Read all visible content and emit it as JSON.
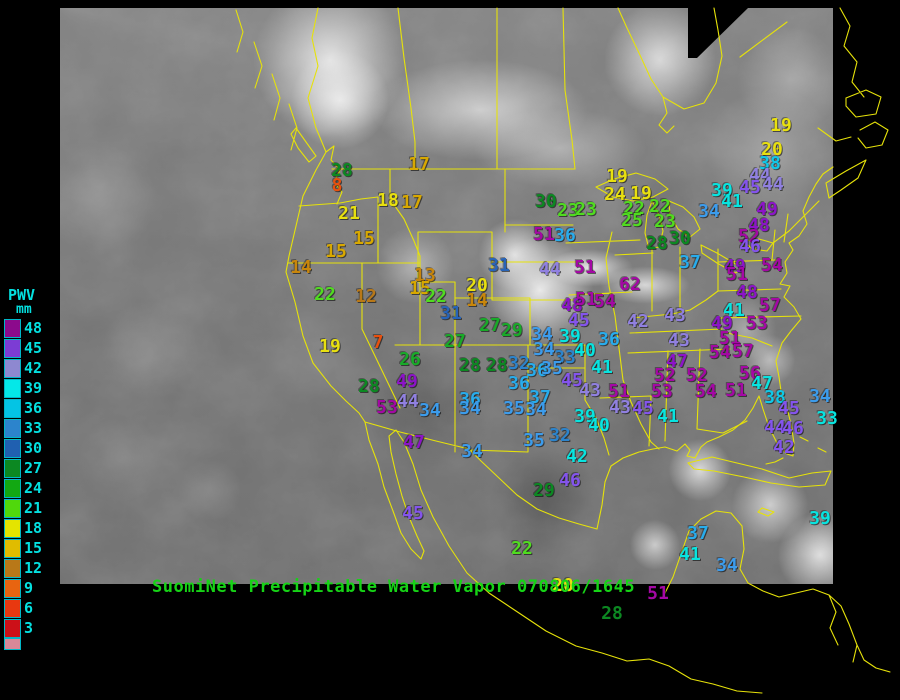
{
  "title": {
    "text": "SuomiNet Precipitable Water Vapor 070806/1645",
    "color": "#16d316"
  },
  "legend": {
    "title": "PWV",
    "unit": "mm",
    "label_color": "#04e0e0",
    "entries": [
      {
        "value": "48",
        "color": "#8c0a8c"
      },
      {
        "value": "45",
        "color": "#7c3cd4"
      },
      {
        "value": "42",
        "color": "#8e88d0"
      },
      {
        "value": "39",
        "color": "#04e8e8"
      },
      {
        "value": "36",
        "color": "#04c4e4"
      },
      {
        "value": "33",
        "color": "#2c84cc"
      },
      {
        "value": "30",
        "color": "#2060b0"
      },
      {
        "value": "27",
        "color": "#0c8822"
      },
      {
        "value": "24",
        "color": "#12a812"
      },
      {
        "value": "21",
        "color": "#50d80c"
      },
      {
        "value": "18",
        "color": "#e4e400"
      },
      {
        "value": "15",
        "color": "#e0bc00"
      },
      {
        "value": "12",
        "color": "#b87818"
      },
      {
        "value": "9",
        "color": "#e86410"
      },
      {
        "value": "6",
        "color": "#e83810"
      },
      {
        "value": "3",
        "color": "#cc1018"
      }
    ],
    "partial_bottom_color": "#d88898"
  },
  "map": {
    "outline_color": "#e6e20a",
    "background": "#000000"
  },
  "station_fields": [
    "value",
    "x",
    "y",
    "color"
  ],
  "stations": [
    [
      "28",
      342,
      171,
      "#0c8822"
    ],
    [
      "8",
      337,
      186,
      "#e8500e"
    ],
    [
      "17",
      419,
      165,
      "#d8a800"
    ],
    [
      "18",
      388,
      201,
      "#e8e010"
    ],
    [
      "17",
      412,
      203,
      "#d8a800"
    ],
    [
      "21",
      349,
      214,
      "#e8e010"
    ],
    [
      "15",
      364,
      239,
      "#d8a800"
    ],
    [
      "15",
      336,
      252,
      "#d8a800"
    ],
    [
      "14",
      301,
      268,
      "#c8860c"
    ],
    [
      "22",
      325,
      295,
      "#50dc20"
    ],
    [
      "12",
      366,
      297,
      "#b87818"
    ],
    [
      "13",
      425,
      276,
      "#c8860c"
    ],
    [
      "15",
      420,
      289,
      "#d8a800"
    ],
    [
      "22",
      436,
      297,
      "#50dc20"
    ],
    [
      "20",
      477,
      286,
      "#e8e010"
    ],
    [
      "14",
      477,
      301,
      "#c8860c"
    ],
    [
      "31",
      451,
      314,
      "#2864b8"
    ],
    [
      "19",
      330,
      347,
      "#e8e010"
    ],
    [
      "7",
      378,
      343,
      "#e8500e"
    ],
    [
      "26",
      410,
      360,
      "#18aa28"
    ],
    [
      "27",
      455,
      342,
      "#18aa28"
    ],
    [
      "49",
      407,
      382,
      "#8c14c8"
    ],
    [
      "28",
      369,
      387,
      "#0c8822"
    ],
    [
      "53",
      387,
      408,
      "#a408a4"
    ],
    [
      "44",
      408,
      402,
      "#9080e0"
    ],
    [
      "34",
      430,
      411,
      "#3c9cec"
    ],
    [
      "47",
      414,
      443,
      "#8c14c8"
    ],
    [
      "45",
      413,
      514,
      "#8454ec"
    ],
    [
      "34",
      472,
      452,
      "#3c9cec"
    ],
    [
      "27",
      490,
      326,
      "#18aa28"
    ],
    [
      "29",
      512,
      331,
      "#18aa28"
    ],
    [
      "31",
      499,
      266,
      "#2864b8"
    ],
    [
      "30",
      546,
      202,
      "#0c8822"
    ],
    [
      "23",
      568,
      211,
      "#50dc20"
    ],
    [
      "23",
      586,
      210,
      "#50dc20"
    ],
    [
      "51",
      544,
      235,
      "#a408a4"
    ],
    [
      "36",
      565,
      236,
      "#28acec"
    ],
    [
      "44",
      550,
      270,
      "#9080e0"
    ],
    [
      "51",
      585,
      268,
      "#a408a4"
    ],
    [
      "48",
      572,
      306,
      "#8c14c8"
    ],
    [
      "45",
      579,
      321,
      "#8454ec"
    ],
    [
      "51",
      586,
      300,
      "#a408a4"
    ],
    [
      "54",
      605,
      302,
      "#a408a4"
    ],
    [
      "62",
      630,
      285,
      "#a408a4"
    ],
    [
      "42",
      638,
      322,
      "#9080e0"
    ],
    [
      "34",
      542,
      335,
      "#3c9cec"
    ],
    [
      "39",
      570,
      337,
      "#08e4e0"
    ],
    [
      "36",
      609,
      340,
      "#28acec"
    ],
    [
      "34",
      544,
      350,
      "#3c9cec"
    ],
    [
      "33",
      565,
      358,
      "#2c84cc"
    ],
    [
      "40",
      585,
      351,
      "#08e4e0"
    ],
    [
      "41",
      602,
      368,
      "#08e4e0"
    ],
    [
      "28",
      470,
      366,
      "#0c8822"
    ],
    [
      "28",
      497,
      366,
      "#0c8822"
    ],
    [
      "32",
      519,
      364,
      "#2c84cc"
    ],
    [
      "36",
      537,
      371,
      "#28acec"
    ],
    [
      "35",
      552,
      369,
      "#3c9cec"
    ],
    [
      "45",
      572,
      381,
      "#8454ec"
    ],
    [
      "43",
      590,
      391,
      "#9080e0"
    ],
    [
      "51",
      619,
      392,
      "#a408a4"
    ],
    [
      "36",
      470,
      400,
      "#28acec"
    ],
    [
      "34",
      470,
      409,
      "#3c9cec"
    ],
    [
      "36",
      519,
      384,
      "#28acec"
    ],
    [
      "37",
      540,
      398,
      "#28acec"
    ],
    [
      "35",
      514,
      409,
      "#3c9cec"
    ],
    [
      "34",
      536,
      410,
      "#3c9cec"
    ],
    [
      "43",
      620,
      408,
      "#9080e0"
    ],
    [
      "45",
      643,
      409,
      "#8454ec"
    ],
    [
      "41",
      668,
      417,
      "#08e4e0"
    ],
    [
      "39",
      585,
      417,
      "#08e4e0"
    ],
    [
      "40",
      599,
      426,
      "#08e4e0"
    ],
    [
      "35",
      534,
      441,
      "#3c9cec"
    ],
    [
      "32",
      560,
      436,
      "#2c84cc"
    ],
    [
      "42",
      577,
      457,
      "#08e4e0"
    ],
    [
      "46",
      570,
      481,
      "#8454ec"
    ],
    [
      "29",
      544,
      491,
      "#0c8822"
    ],
    [
      "22",
      522,
      549,
      "#50dc20"
    ],
    [
      "20",
      563,
      586,
      "#e8e010"
    ],
    [
      "28",
      612,
      614,
      "#0c8822"
    ],
    [
      "19",
      617,
      177,
      "#e8e010"
    ],
    [
      "24",
      615,
      195,
      "#e8e010"
    ],
    [
      "19",
      641,
      194,
      "#e8e010"
    ],
    [
      "22",
      634,
      209,
      "#50dc20"
    ],
    [
      "25",
      632,
      221,
      "#50dc20"
    ],
    [
      "22",
      660,
      207,
      "#50dc20"
    ],
    [
      "23",
      665,
      222,
      "#50dc20"
    ],
    [
      "28",
      657,
      244,
      "#0c8822"
    ],
    [
      "30",
      680,
      239,
      "#0c8822"
    ],
    [
      "37",
      690,
      263,
      "#28acec"
    ],
    [
      "39",
      722,
      191,
      "#08e4e0"
    ],
    [
      "41",
      732,
      202,
      "#08e4e0"
    ],
    [
      "34",
      709,
      212,
      "#3c9cec"
    ],
    [
      "19",
      781,
      126,
      "#e8e010"
    ],
    [
      "20",
      772,
      150,
      "#e8e010"
    ],
    [
      "38",
      770,
      164,
      "#10c8e8"
    ],
    [
      "44",
      760,
      176,
      "#9080e0"
    ],
    [
      "45",
      750,
      188,
      "#8454ec"
    ],
    [
      "44",
      773,
      185,
      "#9080e0"
    ],
    [
      "49",
      767,
      210,
      "#8c14c8"
    ],
    [
      "48",
      759,
      226,
      "#8c14c8"
    ],
    [
      "52",
      749,
      237,
      "#a408a4"
    ],
    [
      "46",
      750,
      247,
      "#8454ec"
    ],
    [
      "49",
      735,
      267,
      "#8c14c8"
    ],
    [
      "54",
      772,
      266,
      "#a408a4"
    ],
    [
      "51",
      737,
      275,
      "#a408a4"
    ],
    [
      "48",
      747,
      293,
      "#8c14c8"
    ],
    [
      "57",
      770,
      306,
      "#a408a4"
    ],
    [
      "41",
      734,
      311,
      "#08e4e0"
    ],
    [
      "49",
      722,
      324,
      "#8c14c8"
    ],
    [
      "53",
      757,
      324,
      "#a408a4"
    ],
    [
      "51",
      730,
      339,
      "#a408a4"
    ],
    [
      "43",
      675,
      316,
      "#9080e0"
    ],
    [
      "43",
      679,
      341,
      "#9080e0"
    ],
    [
      "47",
      677,
      362,
      "#8c14c8"
    ],
    [
      "52",
      665,
      376,
      "#a408a4"
    ],
    [
      "52",
      697,
      376,
      "#a408a4"
    ],
    [
      "54",
      720,
      353,
      "#a408a4"
    ],
    [
      "57",
      743,
      352,
      "#a408a4"
    ],
    [
      "56",
      750,
      374,
      "#a408a4"
    ],
    [
      "47",
      762,
      384,
      "#08e4e0"
    ],
    [
      "53",
      662,
      392,
      "#a408a4"
    ],
    [
      "54",
      706,
      392,
      "#a408a4"
    ],
    [
      "51",
      736,
      391,
      "#a408a4"
    ],
    [
      "38",
      775,
      398,
      "#10c8e8"
    ],
    [
      "34",
      820,
      397,
      "#3c9cec"
    ],
    [
      "45",
      789,
      409,
      "#8454ec"
    ],
    [
      "44",
      775,
      428,
      "#8454ec"
    ],
    [
      "46",
      793,
      429,
      "#8454ec"
    ],
    [
      "42",
      784,
      448,
      "#8454ec"
    ],
    [
      "33",
      827,
      419,
      "#08e4e0"
    ],
    [
      "39",
      820,
      519,
      "#08e4e0"
    ],
    [
      "37",
      698,
      534,
      "#28acec"
    ],
    [
      "41",
      690,
      555,
      "#08e4e0"
    ],
    [
      "34",
      727,
      566,
      "#3c9cec"
    ],
    [
      "51",
      658,
      594,
      "#a408a4"
    ]
  ]
}
